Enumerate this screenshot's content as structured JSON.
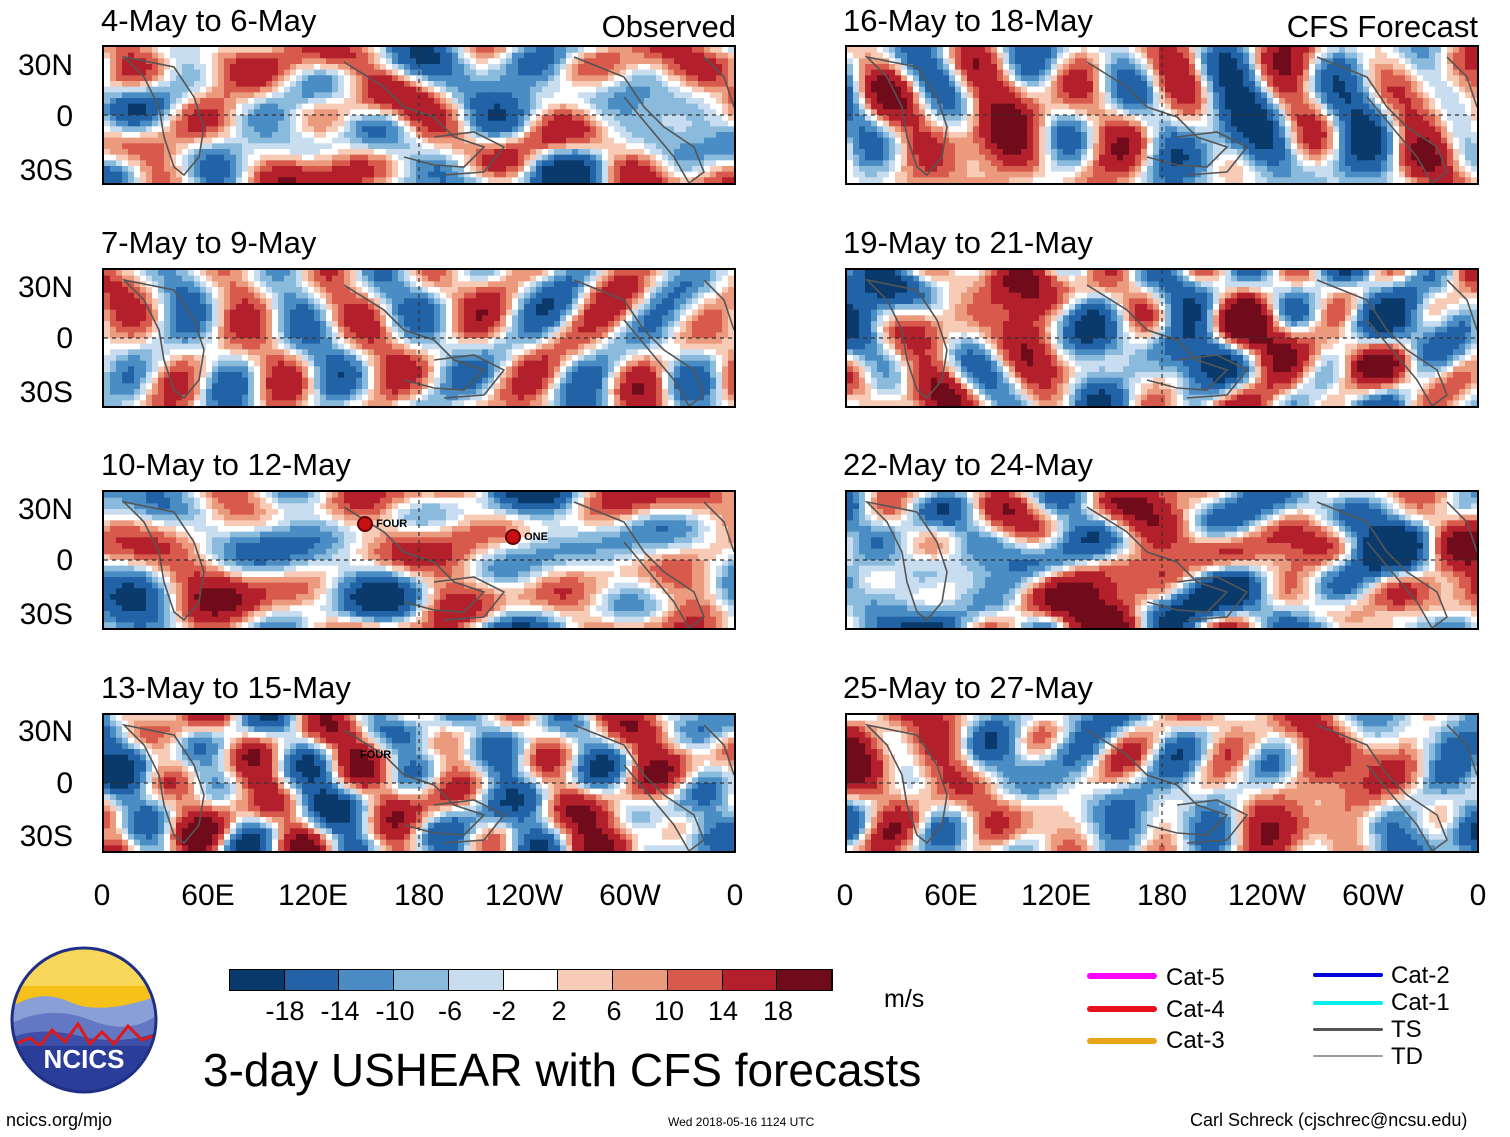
{
  "header": {
    "observed": "Observed",
    "forecast": "CFS Forecast"
  },
  "panels": [
    {
      "title": "4-May to 6-May",
      "kind": "obs"
    },
    {
      "title": "7-May to 9-May",
      "kind": "obs"
    },
    {
      "title": "10-May to 12-May",
      "kind": "obs"
    },
    {
      "title": "13-May to 15-May",
      "kind": "obs"
    },
    {
      "title": "16-May to 18-May",
      "kind": "fcst"
    },
    {
      "title": "19-May to 21-May",
      "kind": "fcst"
    },
    {
      "title": "22-May to 24-May",
      "kind": "fcst"
    },
    {
      "title": "25-May to 27-May",
      "kind": "fcst"
    }
  ],
  "axes": {
    "lat_labels": [
      "30N",
      "0",
      "30S"
    ],
    "lon_labels": [
      "0",
      "60E",
      "120E",
      "180",
      "120W",
      "60W",
      "0"
    ]
  },
  "storms": [
    {
      "name": "FOUR",
      "panel": 2
    },
    {
      "name": "ONE",
      "panel": 2
    },
    {
      "name": "FOUR",
      "panel": 3
    }
  ],
  "colorbar": {
    "units": "m/s",
    "labels": [
      "-18",
      "-14",
      "-10",
      "-6",
      "-2",
      "2",
      "6",
      "10",
      "14",
      "18"
    ],
    "colors": [
      "#0a3a6b",
      "#2163a6",
      "#4a8cc4",
      "#8bbbdc",
      "#c8def0",
      "#ffffff",
      "#f7cbb5",
      "#ec9a7e",
      "#d75a4c",
      "#b3202b",
      "#6f0b1a"
    ]
  },
  "legend": [
    {
      "label": "Cat-5",
      "color": "#ff00ff"
    },
    {
      "label": "Cat-4",
      "color": "#e8101a"
    },
    {
      "label": "Cat-3",
      "color": "#e8a51a"
    },
    {
      "label": "Cat-2",
      "color": "#0000e0"
    },
    {
      "label": "Cat-1",
      "color": "#00f0f0"
    },
    {
      "label": "TS",
      "color": "#555555"
    },
    {
      "label": "TD",
      "color": "#9a9a9a"
    }
  ],
  "logo": {
    "text": "NCICS"
  },
  "main_title": "3-day USHEAR with CFS forecasts",
  "footer": {
    "left": "ncics.org/mjo",
    "center": "Wed 2018-05-16 1124 UTC",
    "right": "Carl Schreck (cjschrec@ncsu.edu)"
  }
}
